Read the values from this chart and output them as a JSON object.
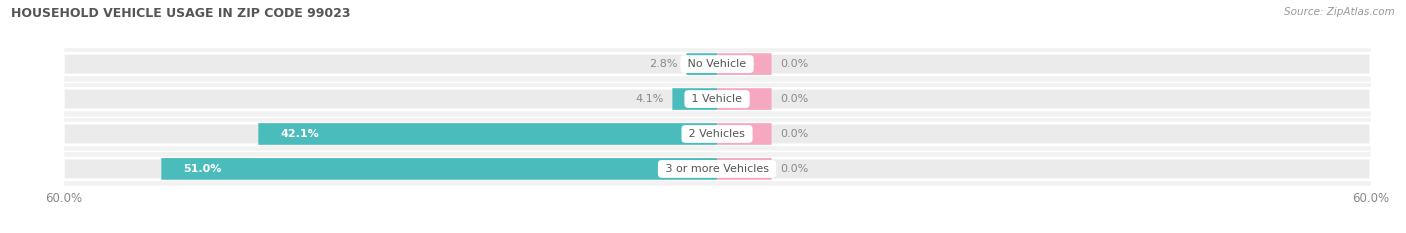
{
  "title": "HOUSEHOLD VEHICLE USAGE IN ZIP CODE 99023",
  "source": "Source: ZipAtlas.com",
  "categories": [
    "No Vehicle",
    "1 Vehicle",
    "2 Vehicles",
    "3 or more Vehicles"
  ],
  "owner_values": [
    2.8,
    4.1,
    42.1,
    51.0
  ],
  "renter_values": [
    0.0,
    0.0,
    0.0,
    0.0
  ],
  "renter_display": [
    5.0,
    5.0,
    5.0,
    5.0
  ],
  "owner_color": "#4bbcbc",
  "renter_color": "#f5a8c0",
  "axis_max": 60.0,
  "bar_bg_color": "#ebebeb",
  "bar_row_bg": "#f5f5f5",
  "bar_height": 0.62,
  "title_color": "#555555",
  "source_color": "#999999",
  "axis_label": "60.0%",
  "label_outside_color": "#888888",
  "label_inside_color": "#ffffff",
  "cat_label_color": "#555555",
  "renter_label_color": "#888888"
}
